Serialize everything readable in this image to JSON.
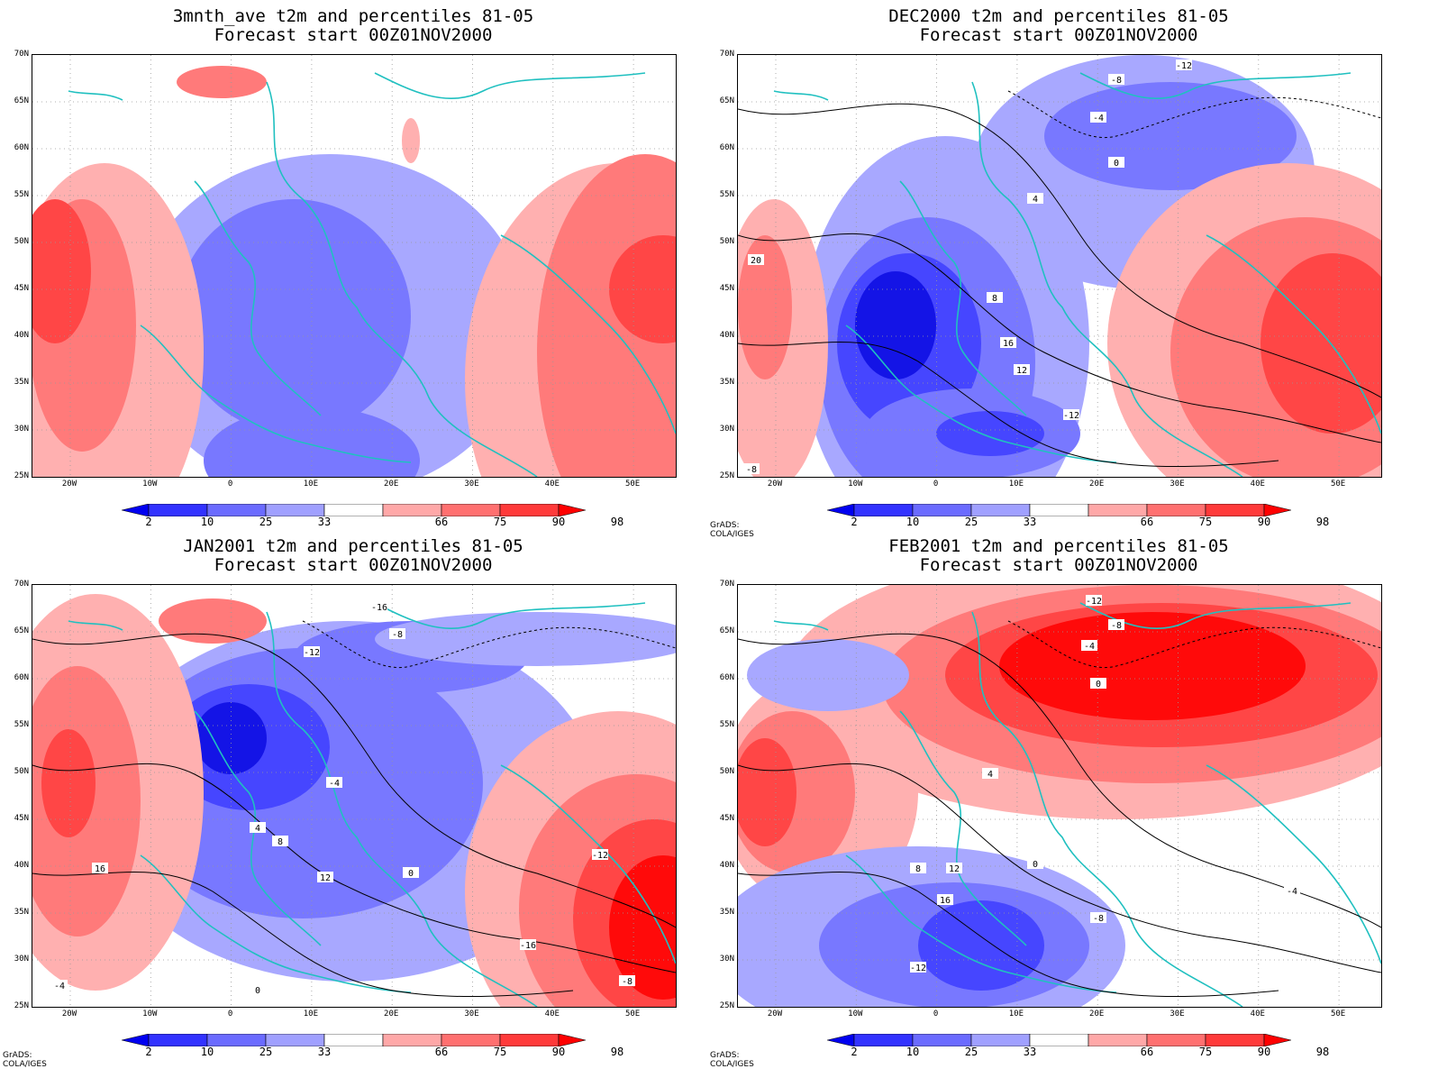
{
  "panels": [
    {
      "id": "p1",
      "title_line1": "3mnth_ave t2m and percentiles 81-05",
      "title_line2": "Forecast start 00Z01NOV2000",
      "credit": ""
    },
    {
      "id": "p2",
      "title_line1": "DEC2000 t2m and percentiles 81-05",
      "title_line2": "Forecast start 00Z01NOV2000",
      "credit": "GrADS: COLA/IGES"
    },
    {
      "id": "p3",
      "title_line1": "JAN2001 t2m and percentiles 81-05",
      "title_line2": "Forecast start 00Z01NOV2000",
      "credit": "GrADS: COLA/IGES"
    },
    {
      "id": "p4",
      "title_line1": "FEB2001 t2m and percentiles 81-05",
      "title_line2": "Forecast start 00Z01NOV2000",
      "credit": "GrADS: COLA/IGES"
    }
  ],
  "lat_labels": [
    "70N",
    "65N",
    "60N",
    "55N",
    "50N",
    "45N",
    "40N",
    "35N",
    "30N",
    "25N"
  ],
  "lon_labels": [
    "20W",
    "10W",
    "0",
    "10E",
    "20E",
    "30E",
    "40E",
    "50E"
  ],
  "colorbar": {
    "labels": [
      "2",
      "10",
      "25",
      "33",
      "66",
      "75",
      "90",
      "98"
    ],
    "colors": [
      "#0000f0",
      "#3232ff",
      "#6b6bff",
      "#a0a0ff",
      "#ffffff",
      "#ffa8a8",
      "#ff7070",
      "#ff3a3a",
      "#ff0000"
    ]
  },
  "shading": {
    "blue_strong": "#1414e6",
    "blue_mid": "#4646ff",
    "blue_light": "#7878ff",
    "blue_pale": "#a8a8ff",
    "red_pale": "#ffb0b0",
    "red_light": "#ff7a7a",
    "red_mid": "#ff4646",
    "red_strong": "#ff0a0a",
    "coast": "#20c0c0"
  },
  "contour_labels": {
    "p2": [
      "-12",
      "-8",
      "-4",
      "0",
      "4",
      "8",
      "12",
      "16",
      "20"
    ],
    "p3": [
      "-16",
      "-12",
      "-8",
      "-4",
      "0",
      "4",
      "8",
      "12",
      "16"
    ],
    "p4": [
      "-12",
      "-8",
      "-4",
      "0",
      "4",
      "8",
      "12",
      "16"
    ]
  }
}
